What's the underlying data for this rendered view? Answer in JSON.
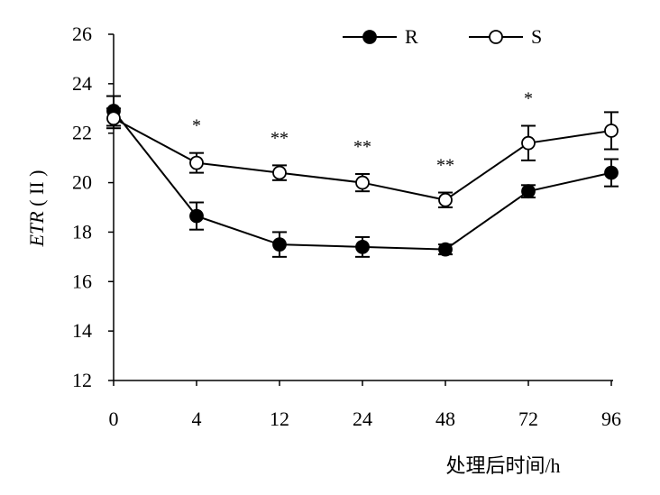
{
  "chart_data": {
    "type": "line",
    "xlabel": "处理后时间/h",
    "ylabel_italic": "ETR",
    "ylabel_rest": " ( II )",
    "categories": [
      "0",
      "4",
      "12",
      "24",
      "48",
      "72",
      "96"
    ],
    "ylim": [
      12,
      26
    ],
    "yticks": [
      12,
      14,
      16,
      18,
      20,
      22,
      24,
      26
    ],
    "legend_position": "top-right",
    "series": [
      {
        "name": "R",
        "marker": "filled-circle",
        "values": [
          22.9,
          18.65,
          17.5,
          17.4,
          17.3,
          19.65,
          20.4
        ],
        "errors": [
          0.6,
          0.55,
          0.5,
          0.4,
          0.2,
          0.25,
          0.55
        ]
      },
      {
        "name": "S",
        "marker": "open-circle",
        "values": [
          22.6,
          20.8,
          20.4,
          20.0,
          19.3,
          21.6,
          22.1
        ],
        "errors": [
          0.4,
          0.4,
          0.3,
          0.35,
          0.3,
          0.7,
          0.75
        ]
      }
    ],
    "annotations": [
      "",
      "*",
      "**",
      "**",
      "**",
      "*",
      ""
    ],
    "colors": {
      "line": "#000000",
      "marker_fill": "#000000",
      "open_fill": "#ffffff"
    }
  }
}
